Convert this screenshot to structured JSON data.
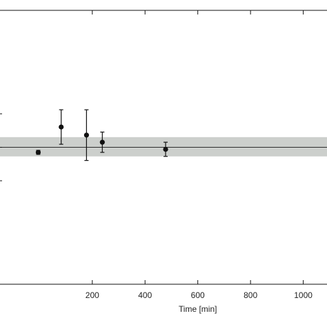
{
  "chart_data": {
    "type": "scatter",
    "title": "",
    "xlabel": "Time [min]",
    "ylabel": "",
    "xlim": [
      -150,
      1090
    ],
    "ylim": [
      -1.35,
      1.35
    ],
    "x_ticks": [
      200,
      400,
      600,
      800,
      1000
    ],
    "x_tick_labels": [
      "200",
      "400",
      "600",
      "800",
      "1000"
    ],
    "reference_line": {
      "y": 0.0
    },
    "reference_band": {
      "low": -0.09,
      "high": 0.1
    },
    "grid": false,
    "series": [
      {
        "points": [
          {
            "x": -5,
            "y": -0.05,
            "err_low": 0.02,
            "err_high": 0.02
          },
          {
            "x": 82,
            "y": 0.2,
            "err_low": 0.17,
            "err_high": 0.17
          },
          {
            "x": 178,
            "y": 0.12,
            "err_low": 0.25,
            "err_high": 0.25
          },
          {
            "x": 238,
            "y": 0.05,
            "err_low": 0.1,
            "err_high": 0.1
          },
          {
            "x": 478,
            "y": -0.02,
            "err_low": 0.07,
            "err_high": 0.07
          }
        ]
      }
    ],
    "colors": {
      "band": "#cccfcc",
      "line": "#2b2b2b",
      "points": "#111111",
      "axes": "#111111"
    }
  }
}
